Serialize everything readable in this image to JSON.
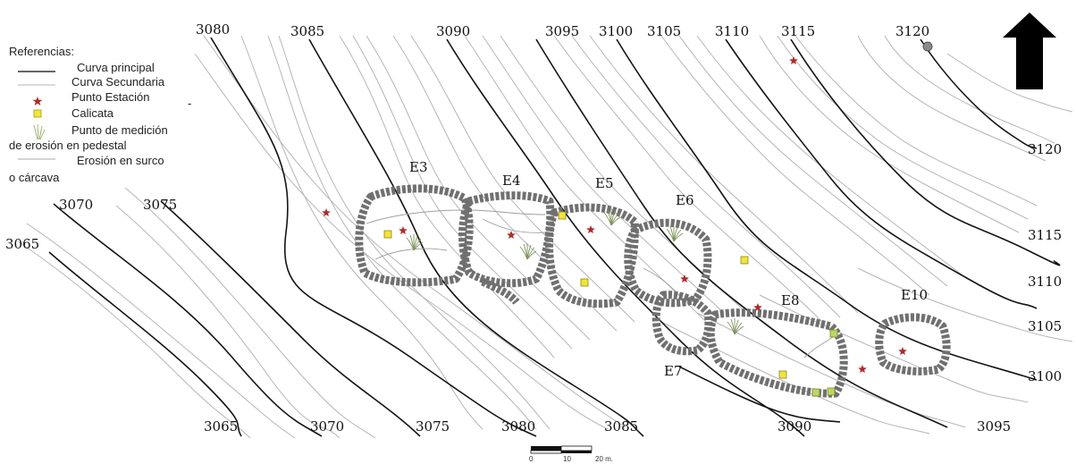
{
  "legend": {
    "title": "Referencias:",
    "items": [
      {
        "label": "Curva principal",
        "symbol": "major-contour-line"
      },
      {
        "label": "Curva Secundaria",
        "symbol": "minor-contour-line"
      },
      {
        "label": "Punto Estación",
        "symbol": "red-star-icon"
      },
      {
        "label": "Calicata",
        "symbol": "yellow-square-icon"
      },
      {
        "label": "Punto de medición",
        "symbol": "grass-tuft-icon"
      },
      {
        "label": "de erosión en pedestal",
        "symbol": ""
      },
      {
        "label": "Erosión en surco",
        "symbol": "furrow-line"
      },
      {
        "label": "o cárcava",
        "symbol": ""
      }
    ],
    "dash": "-"
  },
  "top_labels": [
    "3080",
    "3085",
    "3090",
    "3095",
    "3100",
    "3105",
    "3110",
    "3115",
    "3120"
  ],
  "left_labels": [
    "3070",
    "3075",
    "3065"
  ],
  "right_labels": [
    "3120",
    "3115",
    "3110",
    "3105",
    "3100"
  ],
  "bottom_labels": [
    "3065",
    "3070",
    "3075",
    "3080",
    "3085",
    "3090",
    "3095"
  ],
  "enclosures": [
    "E3",
    "E4",
    "E5",
    "E6",
    "E7",
    "E8",
    "E10"
  ],
  "scale_bar": {
    "ticks": [
      "0",
      "10",
      "20 m."
    ]
  },
  "colors": {
    "star": "#b02a2a",
    "calicata": "#f0e63a",
    "contour": "#141414",
    "minor": "#b5b5b5",
    "stone": "#707070"
  },
  "north_arrow": "north-arrow-icon"
}
